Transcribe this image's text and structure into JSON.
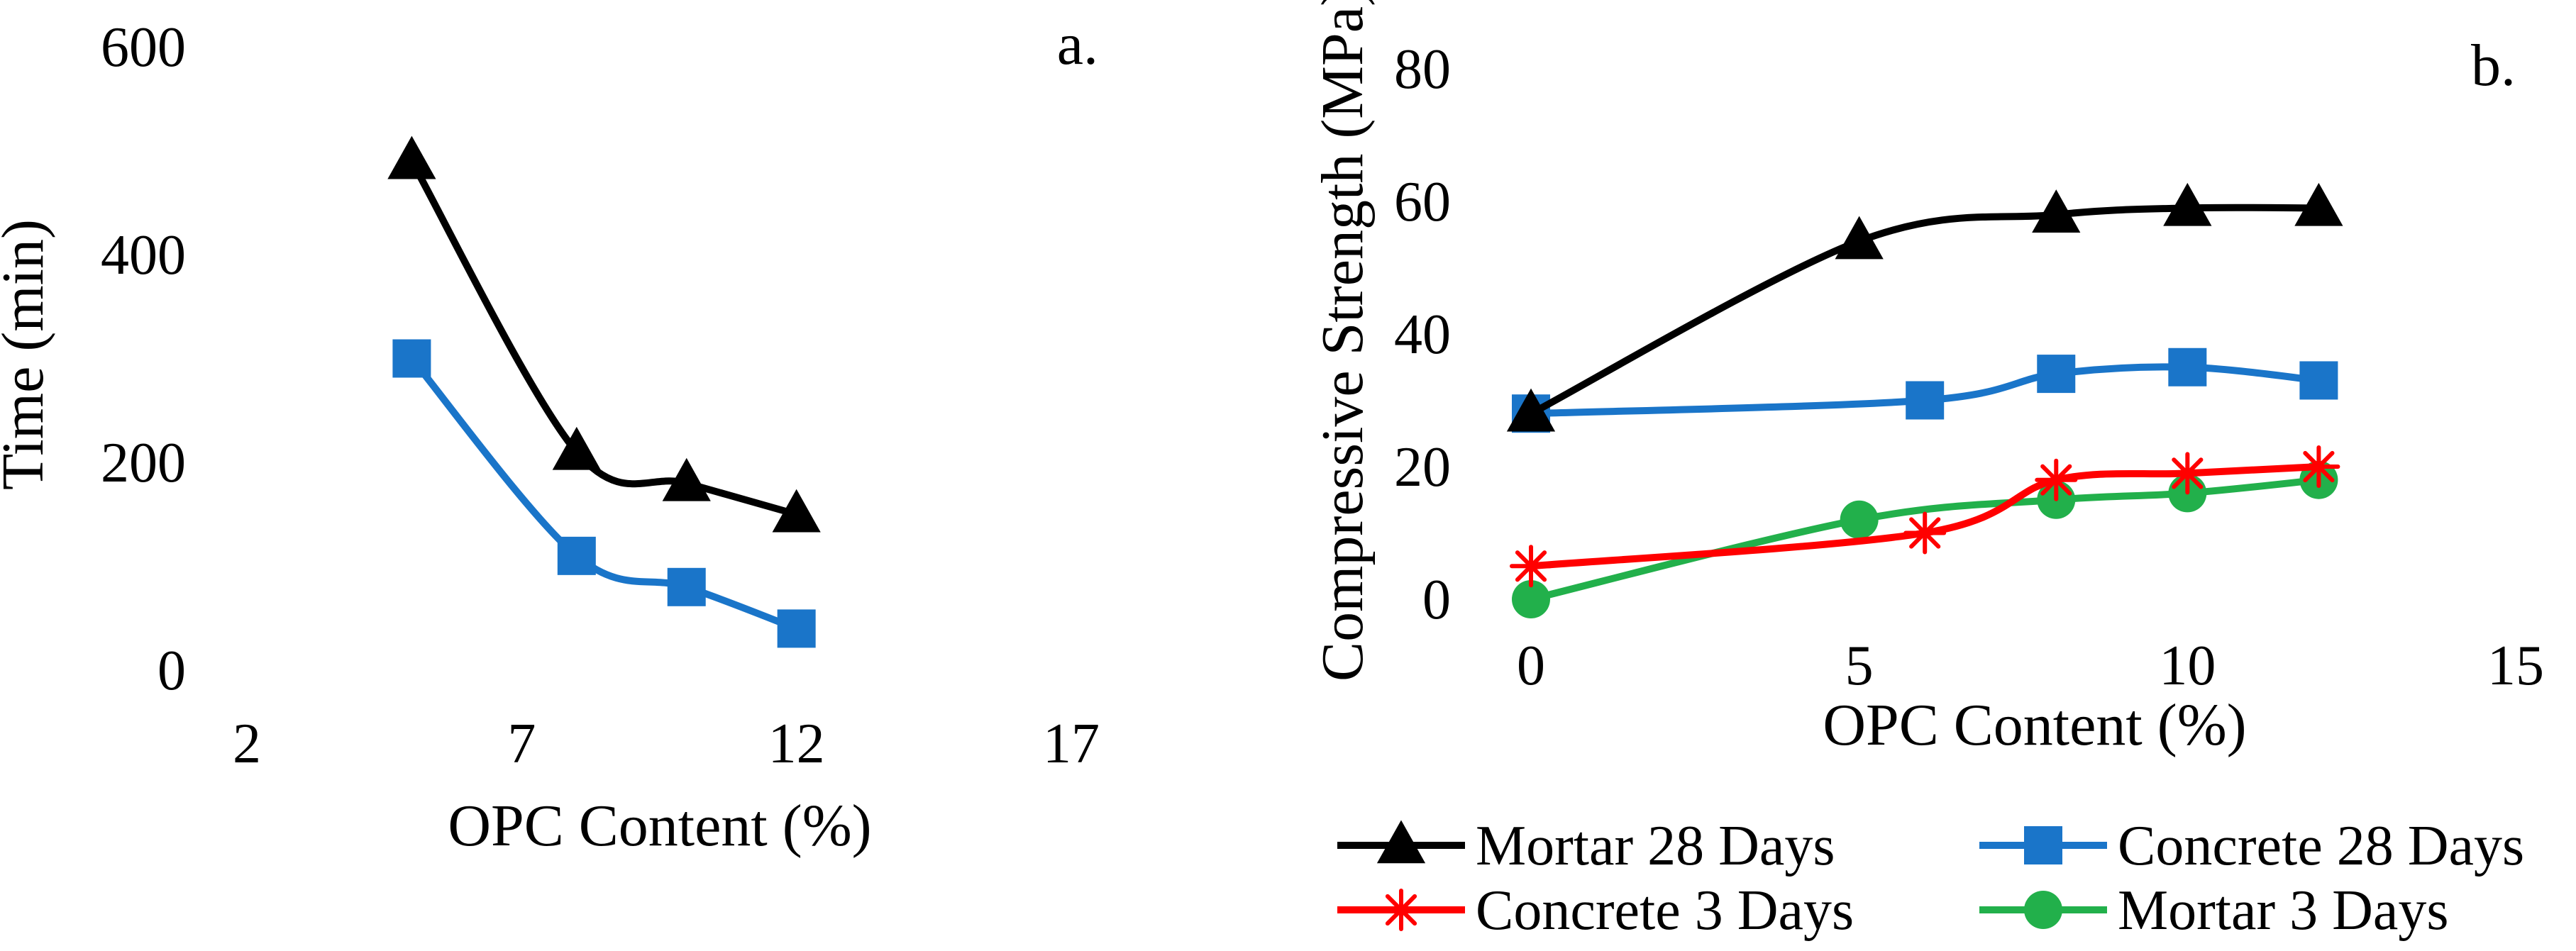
{
  "chart_data": [
    {
      "type": "line",
      "panel_label": "a.",
      "xlabel": "OPC Content (%)",
      "ylabel": "Time (min)",
      "xlim": [
        2,
        17
      ],
      "ylim": [
        0,
        600
      ],
      "xticks": [
        "2",
        "7",
        "12",
        "17"
      ],
      "yticks": [
        "0",
        "200",
        "400",
        "600"
      ],
      "grid": false,
      "series": [
        {
          "name": "Mortar 28 Days",
          "color": "#000000",
          "marker": "triangle",
          "x": [
            5,
            8,
            10,
            12
          ],
          "y": [
            490,
            210,
            180,
            150
          ]
        },
        {
          "name": "Concrete 28 Days",
          "color": "#1a75c9",
          "marker": "square",
          "x": [
            5,
            8,
            10,
            12
          ],
          "y": [
            300,
            110,
            80,
            40
          ]
        }
      ]
    },
    {
      "type": "line",
      "panel_label": "b.",
      "xlabel": "OPC Content (%)",
      "ylabel": "Compressive Strength (MPa)",
      "xlim": [
        0,
        15
      ],
      "ylim": [
        0,
        80
      ],
      "xticks": [
        "0",
        "5",
        "10",
        "15"
      ],
      "yticks": [
        "0",
        "20",
        "40",
        "60",
        "80"
      ],
      "grid": false,
      "legend_position": "bottom",
      "series": [
        {
          "name": "Mortar 28 Days",
          "color": "#000000",
          "marker": "triangle",
          "x": [
            0,
            5,
            8,
            10,
            12
          ],
          "y": [
            28,
            54,
            58,
            59,
            59
          ]
        },
        {
          "name": "Concrete 28 Days",
          "color": "#1a75c9",
          "marker": "square",
          "x": [
            0,
            6,
            8,
            10,
            12
          ],
          "y": [
            28,
            30,
            34,
            35,
            33
          ]
        },
        {
          "name": "Concrete 3 Days",
          "color": "#ff0000",
          "marker": "star",
          "x": [
            0,
            6,
            8,
            10,
            12
          ],
          "y": [
            5,
            10,
            18,
            19,
            20
          ]
        },
        {
          "name": "Mortar 3 Days",
          "color": "#22b04b",
          "marker": "circle",
          "x": [
            0,
            5,
            8,
            10,
            12
          ],
          "y": [
            0,
            12,
            15,
            16,
            18
          ]
        }
      ]
    }
  ]
}
